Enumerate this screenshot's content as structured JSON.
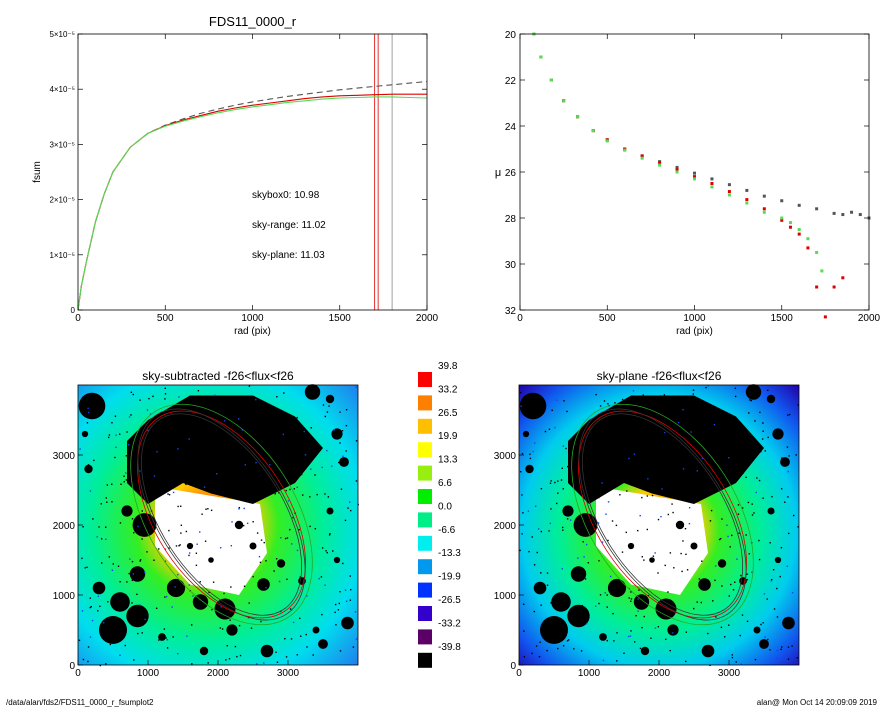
{
  "footer": {
    "path": "/data/alan/fds2/FDS11_0000_r_fsumplot2",
    "stamp": "alan@  Mon Oct 14 20:09:09 2019"
  },
  "chart_data": [
    {
      "id": "fsum",
      "type": "line",
      "title": "FDS11_0000_r",
      "xlabel": "rad (pix)",
      "ylabel": "fsum",
      "xlim": [
        0,
        2000
      ],
      "ylim": [
        0,
        5e-05
      ],
      "xticks": [
        0,
        500,
        1000,
        1500,
        2000
      ],
      "yticks": [
        {
          "value": 0,
          "label": "0"
        },
        {
          "value": 1e-05,
          "label": "1×10⁻⁵"
        },
        {
          "value": 2e-05,
          "label": "2×10⁻⁵"
        },
        {
          "value": 3e-05,
          "label": "3×10⁻⁵"
        },
        {
          "value": 4e-05,
          "label": "4×10⁻⁵"
        },
        {
          "value": 5e-05,
          "label": "5×10⁻⁵"
        }
      ],
      "x": [
        0,
        20,
        50,
        100,
        150,
        200,
        300,
        400,
        500,
        600,
        700,
        800,
        900,
        1000,
        1100,
        1200,
        1300,
        1400,
        1500,
        1600,
        1700,
        1800,
        1900,
        2000
      ],
      "series": [
        {
          "key": "skybox0",
          "color": "#555555",
          "dashed": true,
          "values": [
            0,
            4.5e-06,
            9e-06,
            1.6e-05,
            2.1e-05,
            2.5e-05,
            2.95e-05,
            3.2e-05,
            3.35e-05,
            3.46e-05,
            3.56e-05,
            3.64e-05,
            3.71e-05,
            3.77e-05,
            3.82e-05,
            3.87e-05,
            3.91e-05,
            3.95e-05,
            3.99e-05,
            4.02e-05,
            4.05e-05,
            4.08e-05,
            4.11e-05,
            4.14e-05
          ]
        },
        {
          "key": "sky-range",
          "color": "#dd0000",
          "dashed": false,
          "values": [
            0,
            4.5e-06,
            9e-06,
            1.6e-05,
            2.1e-05,
            2.5e-05,
            2.95e-05,
            3.2e-05,
            3.34e-05,
            3.44e-05,
            3.52e-05,
            3.6e-05,
            3.66e-05,
            3.71e-05,
            3.75e-05,
            3.79e-05,
            3.83e-05,
            3.86e-05,
            3.88e-05,
            3.89e-05,
            3.9e-05,
            3.91e-05,
            3.91e-05,
            3.91e-05
          ]
        },
        {
          "key": "sky-plane",
          "color": "#55dd55",
          "dashed": false,
          "values": [
            0,
            4.5e-06,
            9e-06,
            1.6e-05,
            2.1e-05,
            2.5e-05,
            2.95e-05,
            3.2e-05,
            3.33e-05,
            3.42e-05,
            3.5e-05,
            3.57e-05,
            3.63e-05,
            3.68e-05,
            3.72e-05,
            3.76e-05,
            3.79e-05,
            3.82e-05,
            3.84e-05,
            3.85e-05,
            3.86e-05,
            3.86e-05,
            3.85e-05,
            3.84e-05
          ]
        }
      ],
      "vlines": [
        {
          "x": 1700,
          "color": "#dd0000"
        },
        {
          "x": 1720,
          "color": "#dd0000"
        },
        {
          "x": 1800,
          "color": "#888888"
        }
      ],
      "annotations": [
        {
          "text": "skybox0: 10.98",
          "color": "#000000"
        },
        {
          "text": "sky-range: 11.02",
          "color": "#dd0000"
        },
        {
          "text": "sky-plane: 11.03",
          "color": "#33cc33"
        }
      ]
    },
    {
      "id": "mu",
      "type": "scatter",
      "title": "",
      "xlabel": "rad (pix)",
      "ylabel": "μ",
      "xlim": [
        0,
        2000
      ],
      "ylim": [
        32,
        20
      ],
      "xticks": [
        0,
        500,
        1000,
        1500,
        2000
      ],
      "yticks": [
        20,
        22,
        24,
        26,
        28,
        30,
        32
      ],
      "series": [
        {
          "key": "skybox0",
          "color": "#555555",
          "x": [
            80,
            120,
            180,
            250,
            330,
            420,
            500,
            600,
            700,
            800,
            900,
            1000,
            1100,
            1200,
            1300,
            1400,
            1500,
            1600,
            1700,
            1800,
            1850,
            1900,
            1950,
            2000
          ],
          "y": [
            20.0,
            21.0,
            22.0,
            22.9,
            23.6,
            24.2,
            24.6,
            25.0,
            25.3,
            25.55,
            25.8,
            26.05,
            26.3,
            26.55,
            26.8,
            27.05,
            27.25,
            27.45,
            27.6,
            27.8,
            27.85,
            27.75,
            27.85,
            28.0
          ]
        },
        {
          "key": "sky-range",
          "color": "#dd0000",
          "x": [
            80,
            120,
            180,
            250,
            330,
            420,
            500,
            600,
            700,
            800,
            900,
            1000,
            1100,
            1200,
            1300,
            1400,
            1500,
            1550,
            1600,
            1650,
            1700,
            1750,
            1800,
            1850
          ],
          "y": [
            20.0,
            21.0,
            22.0,
            22.9,
            23.6,
            24.2,
            24.6,
            25.0,
            25.3,
            25.6,
            25.9,
            26.2,
            26.5,
            26.85,
            27.2,
            27.6,
            28.1,
            28.4,
            28.7,
            29.3,
            31.0,
            32.3,
            31.0,
            30.6
          ]
        },
        {
          "key": "sky-plane",
          "color": "#55dd55",
          "x": [
            80,
            120,
            180,
            250,
            330,
            420,
            500,
            600,
            700,
            800,
            900,
            1000,
            1100,
            1200,
            1300,
            1400,
            1500,
            1550,
            1600,
            1650,
            1700,
            1730
          ],
          "y": [
            20.0,
            21.0,
            22.0,
            22.9,
            23.6,
            24.2,
            24.65,
            25.05,
            25.4,
            25.7,
            26.0,
            26.3,
            26.65,
            27.0,
            27.35,
            27.75,
            28.0,
            28.2,
            28.5,
            28.9,
            29.5,
            30.3
          ]
        }
      ]
    },
    {
      "id": "img-left",
      "type": "heatmap",
      "title": "sky-subtracted -f26<flux<f26",
      "xlim": [
        0,
        4000
      ],
      "ylim": [
        0,
        4000
      ],
      "xticks": [
        0,
        1000,
        2000,
        3000
      ],
      "yticks": [
        0,
        1000,
        2000,
        3000
      ],
      "background": "sky-subtracted"
    },
    {
      "id": "img-right",
      "type": "heatmap",
      "title": "sky-plane -f26<flux<f26",
      "xlim": [
        0,
        4000
      ],
      "ylim": [
        0,
        4000
      ],
      "xticks": [
        0,
        1000,
        2000,
        3000
      ],
      "yticks": [
        0,
        1000,
        2000,
        3000
      ],
      "background": "sky-plane"
    },
    {
      "id": "colorbar",
      "type": "colorbar",
      "levels": [
        {
          "label": "39.8",
          "color": "#ff0000"
        },
        {
          "label": "33.2",
          "color": "#ff7f00"
        },
        {
          "label": "26.5",
          "color": "#ffbf00"
        },
        {
          "label": "19.9",
          "color": "#ffff00"
        },
        {
          "label": "13.3",
          "color": "#99ee11"
        },
        {
          "label": "6.6",
          "color": "#00ee00"
        },
        {
          "label": "0.0",
          "color": "#00ee88"
        },
        {
          "label": "-6.6",
          "color": "#00eeee"
        },
        {
          "label": "-13.3",
          "color": "#0099ee"
        },
        {
          "label": "-19.9",
          "color": "#0033ff"
        },
        {
          "label": "-26.5",
          "color": "#3300cc"
        },
        {
          "label": "-33.2",
          "color": "#5a0066"
        },
        {
          "label": "-39.8",
          "color": "#000000"
        }
      ]
    }
  ]
}
